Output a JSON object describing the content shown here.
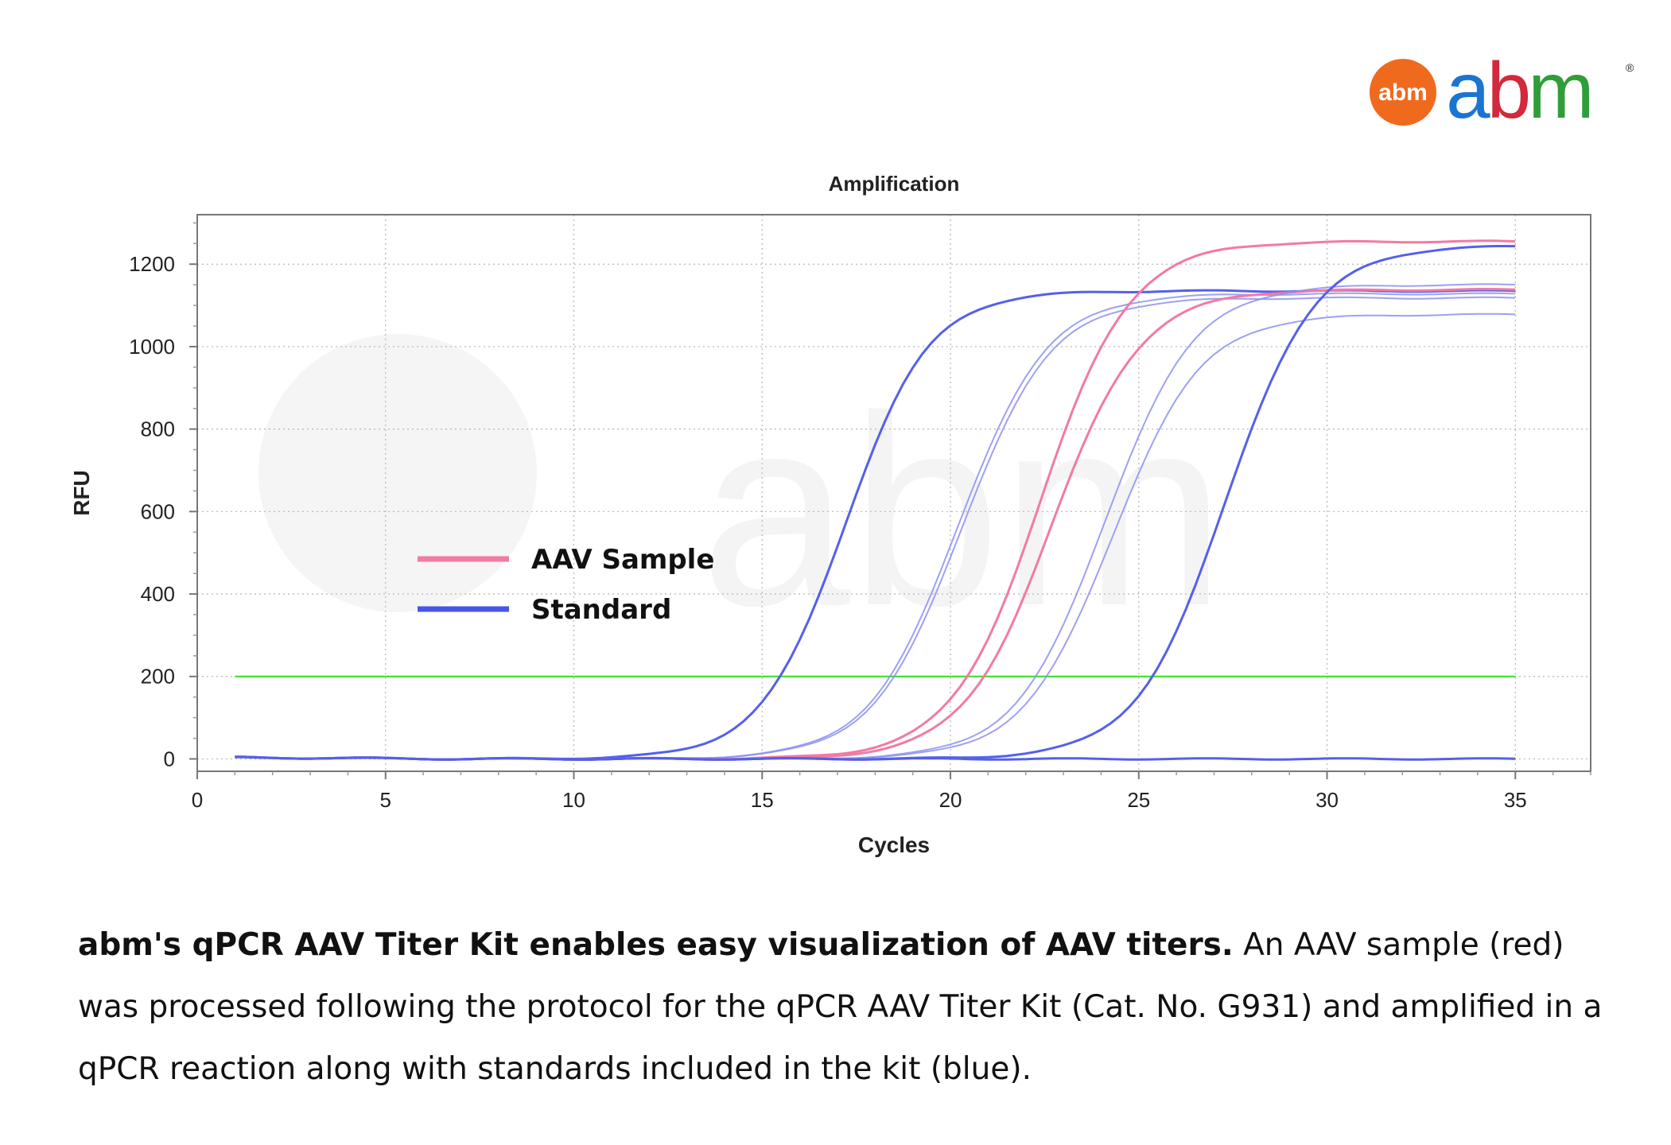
{
  "logo": {
    "badge_text": "abm",
    "wordmark": "abm",
    "registered": "®",
    "colors": {
      "a": "#1a75d2",
      "b": "#d4283c",
      "m": "#2f9e3a",
      "badge": "#f06a1e"
    }
  },
  "chart_data": {
    "type": "line",
    "title": "Amplification",
    "xlabel": "Cycles",
    "ylabel": "RFU",
    "xlim": [
      0,
      37
    ],
    "ylim": [
      -30,
      1320
    ],
    "xticks": [
      0,
      5,
      10,
      15,
      20,
      25,
      30,
      35
    ],
    "yticks": [
      0,
      200,
      400,
      600,
      800,
      1000,
      1200
    ],
    "grid": true,
    "threshold": {
      "value": 200,
      "x_range": [
        1,
        35
      ],
      "color": "#33dd22"
    },
    "legend": {
      "position": "center-left",
      "entries": [
        {
          "label": "AAV Sample",
          "color": "#f27aa3"
        },
        {
          "label": "Standard",
          "color": "#4a55e8"
        }
      ]
    },
    "series": [
      {
        "group": "Standard",
        "color": "#5560ea",
        "style": "strong",
        "midpoint": 17.2,
        "slope": 0.9,
        "plateau": 1135
      },
      {
        "group": "Standard",
        "color": "#8c90ee",
        "style": "light",
        "midpoint": 20.2,
        "slope": 0.85,
        "plateau": 1128
      },
      {
        "group": "Standard",
        "color": "#8c90ee",
        "style": "light",
        "midpoint": 20.3,
        "slope": 0.85,
        "plateau": 1118
      },
      {
        "group": "AAV Sample",
        "color": "#f27aa3",
        "style": "strong",
        "midpoint": 22.4,
        "slope": 0.85,
        "plateau": 1255
      },
      {
        "group": "AAV Sample",
        "color": "#f27aa3",
        "style": "strong",
        "midpoint": 22.7,
        "slope": 0.85,
        "plateau": 1138
      },
      {
        "group": "Standard",
        "color": "#8c90ee",
        "style": "light",
        "midpoint": 24.1,
        "slope": 0.85,
        "plateau": 1150
      },
      {
        "group": "Standard",
        "color": "#8c90ee",
        "style": "light",
        "midpoint": 24.3,
        "slope": 0.85,
        "plateau": 1078
      },
      {
        "group": "Standard",
        "color": "#5560ea",
        "style": "strong",
        "midpoint": 27.3,
        "slope": 0.85,
        "plateau": 1245
      },
      {
        "group": "Standard",
        "color": "#5560ea",
        "style": "flat",
        "midpoint": 99,
        "slope": 0.85,
        "plateau": 5
      }
    ]
  },
  "caption": {
    "bold": "abm's qPCR AAV Titer Kit enables easy visualization of AAV titers.",
    "text": " An AAV sample (red) was processed following the protocol for the qPCR AAV Titer Kit (Cat. No. G931) and amplified in a qPCR reaction along with standards included in the kit (blue)."
  }
}
